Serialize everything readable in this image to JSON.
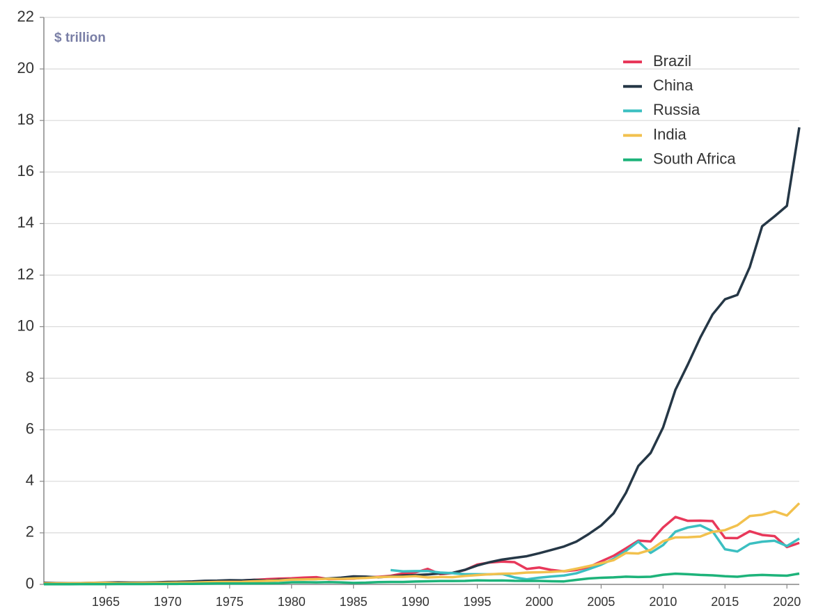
{
  "chart_data": {
    "type": "line",
    "annotation": "$ trillion",
    "x": [
      1960,
      1961,
      1962,
      1963,
      1964,
      1965,
      1966,
      1967,
      1968,
      1969,
      1970,
      1971,
      1972,
      1973,
      1974,
      1975,
      1976,
      1977,
      1978,
      1979,
      1980,
      1981,
      1982,
      1983,
      1984,
      1985,
      1986,
      1987,
      1988,
      1989,
      1990,
      1991,
      1992,
      1993,
      1994,
      1995,
      1996,
      1997,
      1998,
      1999,
      2000,
      2001,
      2002,
      2003,
      2004,
      2005,
      2006,
      2007,
      2008,
      2009,
      2010,
      2011,
      2012,
      2013,
      2014,
      2015,
      2016,
      2017,
      2018,
      2019,
      2020,
      2021
    ],
    "xlim": [
      1960,
      2021
    ],
    "xticks": [
      1965,
      1970,
      1975,
      1980,
      1985,
      1990,
      1995,
      2000,
      2005,
      2010,
      2015,
      2020
    ],
    "ylim": [
      0,
      22
    ],
    "yticks": [
      0,
      2,
      4,
      6,
      8,
      10,
      12,
      14,
      16,
      18,
      20,
      22
    ],
    "grid": true,
    "legend": "top-right",
    "series": [
      {
        "name": "Brazil",
        "color": "#e8385a",
        "values": [
          0.017,
          0.015,
          0.02,
          0.023,
          0.021,
          0.022,
          0.027,
          0.03,
          0.033,
          0.037,
          0.042,
          0.049,
          0.058,
          0.08,
          0.105,
          0.124,
          0.153,
          0.177,
          0.201,
          0.223,
          0.235,
          0.264,
          0.281,
          0.203,
          0.209,
          0.223,
          0.268,
          0.294,
          0.33,
          0.425,
          0.462,
          0.602,
          0.4,
          0.438,
          0.558,
          0.769,
          0.85,
          0.883,
          0.864,
          0.599,
          0.655,
          0.559,
          0.508,
          0.558,
          0.669,
          0.892,
          1.108,
          1.397,
          1.696,
          1.667,
          2.209,
          2.616,
          2.465,
          2.473,
          2.456,
          1.802,
          1.796,
          2.064,
          1.917,
          1.873,
          1.448,
          1.609
        ]
      },
      {
        "name": "China",
        "color": "#253746",
        "values": [
          0.06,
          0.05,
          0.047,
          0.051,
          0.059,
          0.07,
          0.076,
          0.072,
          0.07,
          0.079,
          0.093,
          0.1,
          0.114,
          0.139,
          0.144,
          0.163,
          0.154,
          0.175,
          0.15,
          0.178,
          0.191,
          0.196,
          0.205,
          0.23,
          0.26,
          0.309,
          0.301,
          0.273,
          0.312,
          0.348,
          0.361,
          0.383,
          0.427,
          0.445,
          0.564,
          0.734,
          0.863,
          0.962,
          1.029,
          1.094,
          1.211,
          1.339,
          1.471,
          1.66,
          1.955,
          2.286,
          2.752,
          3.55,
          4.594,
          5.102,
          6.087,
          7.552,
          8.532,
          9.57,
          10.475,
          11.062,
          11.233,
          12.311,
          13.895,
          14.28,
          14.688,
          17.734
        ]
      },
      {
        "name": "Russia",
        "color": "#3bbfc1",
        "values": [
          null,
          null,
          null,
          null,
          null,
          null,
          null,
          null,
          null,
          null,
          null,
          null,
          null,
          null,
          null,
          null,
          null,
          null,
          null,
          null,
          null,
          null,
          null,
          null,
          null,
          null,
          null,
          null,
          0.555,
          0.507,
          0.517,
          0.518,
          0.46,
          0.435,
          0.395,
          0.395,
          0.392,
          0.405,
          0.271,
          0.196,
          0.26,
          0.307,
          0.345,
          0.43,
          0.591,
          0.764,
          0.99,
          1.3,
          1.661,
          1.223,
          1.525,
          2.046,
          2.208,
          2.292,
          2.059,
          1.363,
          1.277,
          1.574,
          1.657,
          1.693,
          1.489,
          1.779
        ]
      },
      {
        "name": "India",
        "color": "#f2c14e",
        "values": [
          0.037,
          0.039,
          0.042,
          0.048,
          0.056,
          0.059,
          0.046,
          0.05,
          0.053,
          0.058,
          0.062,
          0.067,
          0.071,
          0.085,
          0.099,
          0.098,
          0.102,
          0.121,
          0.137,
          0.153,
          0.186,
          0.193,
          0.201,
          0.218,
          0.212,
          0.233,
          0.249,
          0.279,
          0.296,
          0.296,
          0.321,
          0.27,
          0.288,
          0.279,
          0.327,
          0.36,
          0.393,
          0.415,
          0.421,
          0.458,
          0.468,
          0.485,
          0.515,
          0.608,
          0.709,
          0.82,
          0.94,
          1.217,
          1.199,
          1.342,
          1.676,
          1.823,
          1.828,
          1.857,
          2.039,
          2.104,
          2.295,
          2.651,
          2.703,
          2.836,
          2.672,
          3.15
        ]
      },
      {
        "name": "South Africa",
        "color": "#1db37a",
        "values": [
          0.0075,
          0.008,
          0.0085,
          0.0093,
          0.01,
          0.011,
          0.012,
          0.013,
          0.014,
          0.016,
          0.017,
          0.019,
          0.02,
          0.027,
          0.033,
          0.035,
          0.034,
          0.037,
          0.041,
          0.049,
          0.08,
          0.085,
          0.077,
          0.087,
          0.076,
          0.058,
          0.066,
          0.087,
          0.093,
          0.096,
          0.112,
          0.12,
          0.13,
          0.131,
          0.136,
          0.155,
          0.148,
          0.153,
          0.138,
          0.136,
          0.136,
          0.121,
          0.116,
          0.176,
          0.229,
          0.258,
          0.272,
          0.299,
          0.287,
          0.298,
          0.375,
          0.416,
          0.396,
          0.367,
          0.351,
          0.318,
          0.296,
          0.349,
          0.368,
          0.351,
          0.338,
          0.419
        ]
      }
    ]
  }
}
